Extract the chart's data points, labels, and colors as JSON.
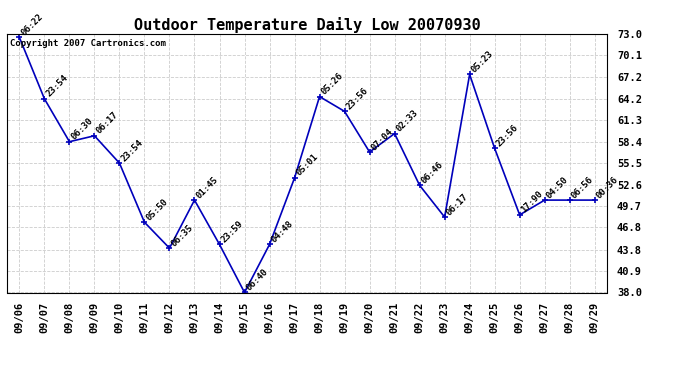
{
  "title": "Outdoor Temperature Daily Low 20070930",
  "copyright": "Copyright 2007 Cartronics.com",
  "dates": [
    "09/06",
    "09/07",
    "09/08",
    "09/09",
    "09/10",
    "09/11",
    "09/12",
    "09/13",
    "09/14",
    "09/15",
    "09/16",
    "09/17",
    "09/18",
    "09/19",
    "09/20",
    "09/21",
    "09/22",
    "09/23",
    "09/24",
    "09/25",
    "09/26",
    "09/27",
    "09/28",
    "09/29"
  ],
  "values": [
    72.5,
    64.2,
    58.4,
    59.2,
    55.5,
    47.5,
    44.0,
    50.5,
    44.5,
    38.0,
    44.5,
    53.5,
    64.5,
    62.5,
    57.0,
    59.5,
    52.5,
    48.2,
    67.5,
    57.5,
    48.5,
    50.5,
    50.5,
    50.5
  ],
  "time_labels": [
    "06:22",
    "23:54",
    "06:30",
    "06:17",
    "23:54",
    "05:50",
    "06:35",
    "01:45",
    "23:59",
    "06:40",
    "04:48",
    "05:01",
    "05:26",
    "23:56",
    "07:04",
    "02:33",
    "06:46",
    "06:17",
    "05:23",
    "23:56",
    "17:90",
    "04:50",
    "06:56",
    "00:36"
  ],
  "ylim": [
    38.0,
    73.0
  ],
  "yticks": [
    38.0,
    40.9,
    43.8,
    46.8,
    49.7,
    52.6,
    55.5,
    58.4,
    61.3,
    64.2,
    67.2,
    70.1,
    73.0
  ],
  "line_color": "#0000bb",
  "marker_color": "#0000bb",
  "bg_color": "#ffffff",
  "grid_color": "#cccccc",
  "label_color": "#000000",
  "title_fontsize": 11,
  "tick_fontsize": 7.5,
  "label_fontsize": 6.5
}
